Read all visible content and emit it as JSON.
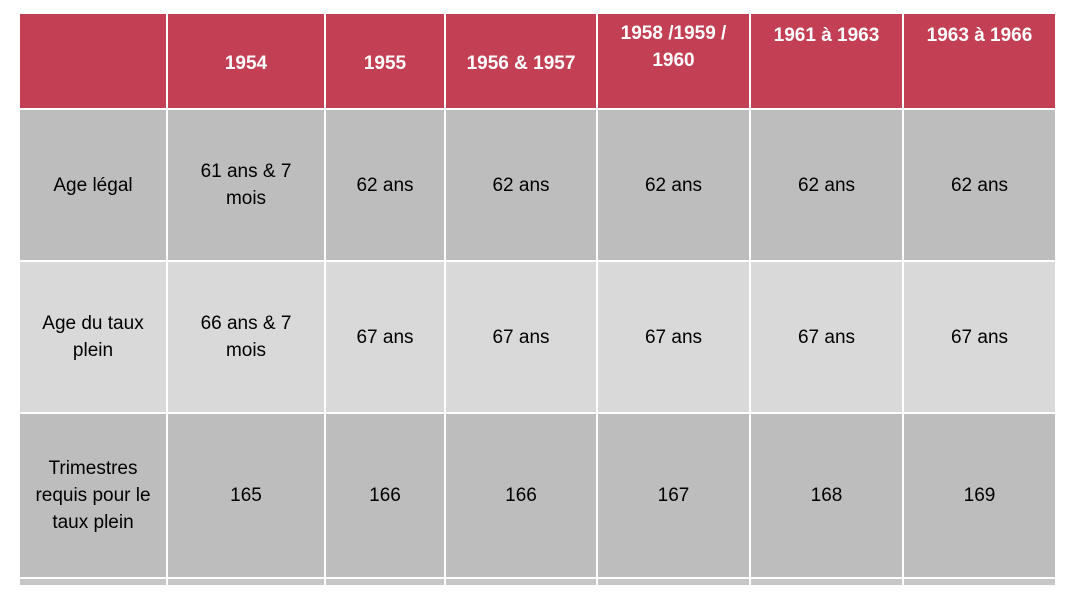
{
  "table": {
    "headers": [
      "",
      "1954",
      "1955",
      "1956 & 1957",
      "1958 /1959 / 1960",
      "1961 à 1963",
      "1963 à 1966"
    ],
    "rows": [
      {
        "label": "Age légal",
        "values": [
          "61 ans & 7 mois",
          "62 ans",
          "62 ans",
          "62 ans",
          "62 ans",
          "62 ans"
        ]
      },
      {
        "label": "Age du taux plein",
        "values": [
          "66 ans & 7 mois",
          "67 ans",
          "67 ans",
          "67 ans",
          "67 ans",
          "67 ans"
        ]
      },
      {
        "label": "Trimestres requis pour le taux plein",
        "values": [
          "165",
          "166",
          "166",
          "167",
          "168",
          "169"
        ]
      }
    ]
  },
  "colors": {
    "header_bg": "#c33f54",
    "header_text": "#ffffff",
    "row_dark": "#bdbdbd",
    "row_light": "#d9d9d9"
  }
}
